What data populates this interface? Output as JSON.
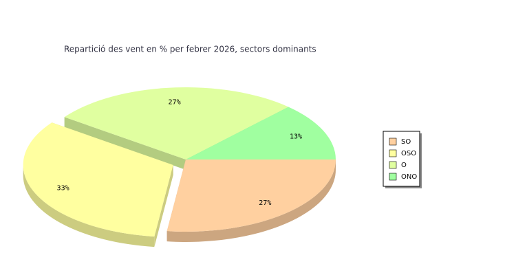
{
  "chart_data": {
    "type": "pie3d",
    "title": "Repartició des vent en % per febrer 2026, sectors dominants",
    "categories": [
      "SO",
      "OSO",
      "O",
      "ONO"
    ],
    "values": [
      27,
      33,
      27,
      13
    ],
    "value_labels": [
      "27%",
      "33%",
      "27%",
      "13%"
    ],
    "colors": [
      "#ffd0a0",
      "#ffffa0",
      "#e0ffa0",
      "#a0ffa0"
    ],
    "exploded": [
      false,
      true,
      false,
      false
    ]
  }
}
